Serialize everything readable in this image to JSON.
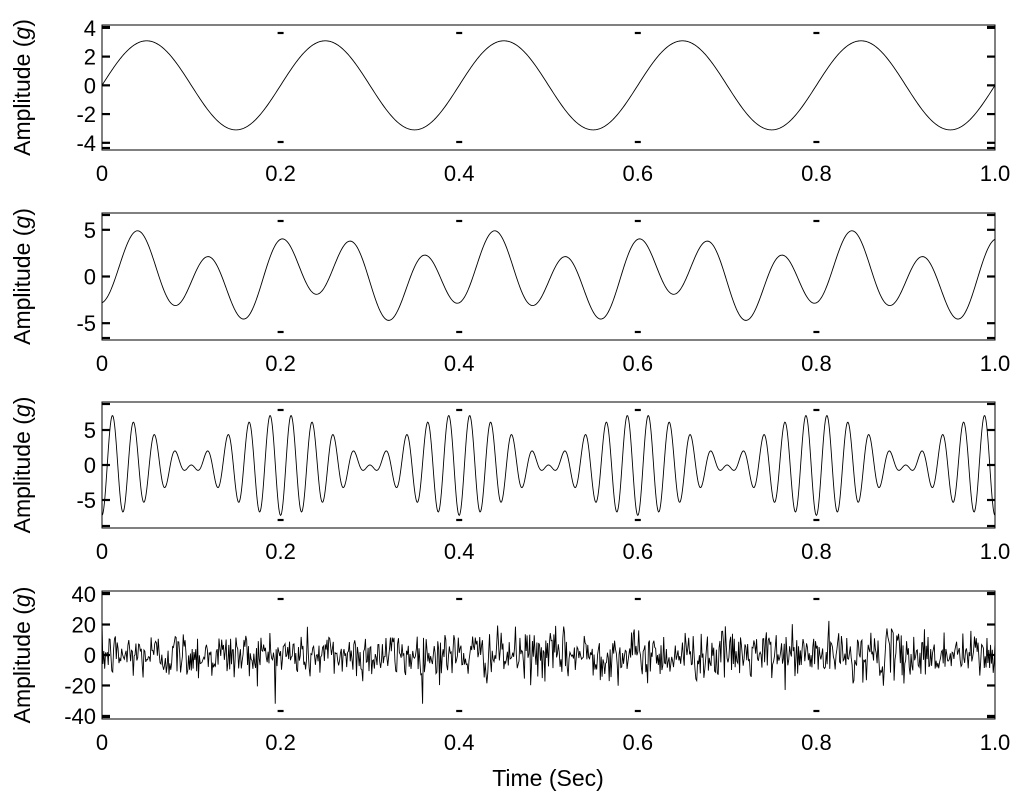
{
  "figure": {
    "xlabel": "Time (Sec)",
    "ylabel_prefix": "Amplitude (",
    "ylabel_unit": "g",
    "ylabel_suffix": ")"
  },
  "chart_data": [
    {
      "type": "line",
      "title": "",
      "xlabel": "",
      "ylabel": "Amplitude (g)",
      "xlim": [
        0,
        1
      ],
      "ylim": [
        -4.5,
        4.2
      ],
      "x_ticks": [
        "0",
        "0.2",
        "0.4",
        "0.6",
        "0.8",
        "1.0"
      ],
      "y_ticks": [
        "4",
        "2",
        "0",
        "-2",
        "-4"
      ],
      "grid": false,
      "signal": {
        "description": "sinusoid",
        "components": [
          {
            "amplitude": 3.1,
            "frequency_hz": 5,
            "phase": 0
          }
        ],
        "samples": 1000
      }
    },
    {
      "type": "line",
      "title": "",
      "xlabel": "",
      "ylabel": "Amplitude (g)",
      "xlim": [
        0,
        1
      ],
      "ylim": [
        -6.8,
        6.8
      ],
      "x_ticks": [
        "0",
        "0.2",
        "0.4",
        "0.6",
        "0.8",
        "1.0"
      ],
      "y_ticks": [
        "5",
        "0",
        "-5"
      ],
      "grid": false,
      "signal": {
        "description": "sum of sinusoids",
        "components": [
          {
            "amplitude": 1.5,
            "frequency_hz": 5,
            "phase": 0.4
          },
          {
            "amplitude": 3.4,
            "frequency_hz": 12.5,
            "phase": -1.57
          }
        ],
        "samples": 1000
      }
    },
    {
      "type": "line",
      "title": "",
      "xlabel": "",
      "ylabel": "Amplitude (g)",
      "xlim": [
        0,
        1
      ],
      "ylim": [
        -9.0,
        9.0
      ],
      "x_ticks": [
        "0",
        "0.2",
        "0.4",
        "0.6",
        "0.8",
        "1.0"
      ],
      "y_ticks": [
        "5",
        "0",
        "-5"
      ],
      "grid": false,
      "signal": {
        "description": "beating sinusoids",
        "components": [
          {
            "amplitude": 3.6,
            "frequency_hz": 45,
            "phase": -1.57
          },
          {
            "amplitude": 3.6,
            "frequency_hz": 40,
            "phase": -1.57
          }
        ],
        "samples": 1500
      }
    },
    {
      "type": "line",
      "title": "",
      "xlabel": "Time (Sec)",
      "ylabel": "Amplitude (g)",
      "xlim": [
        0,
        1
      ],
      "ylim": [
        -42,
        42
      ],
      "x_ticks": [
        "0",
        "0.2",
        "0.4",
        "0.6",
        "0.8",
        "1.0"
      ],
      "y_ticks": [
        "40",
        "20",
        "0",
        "-20",
        "-40"
      ],
      "grid": false,
      "signal": {
        "description": "random noise",
        "noise_std": 8,
        "max_abs": 32,
        "samples": 1000
      }
    }
  ]
}
